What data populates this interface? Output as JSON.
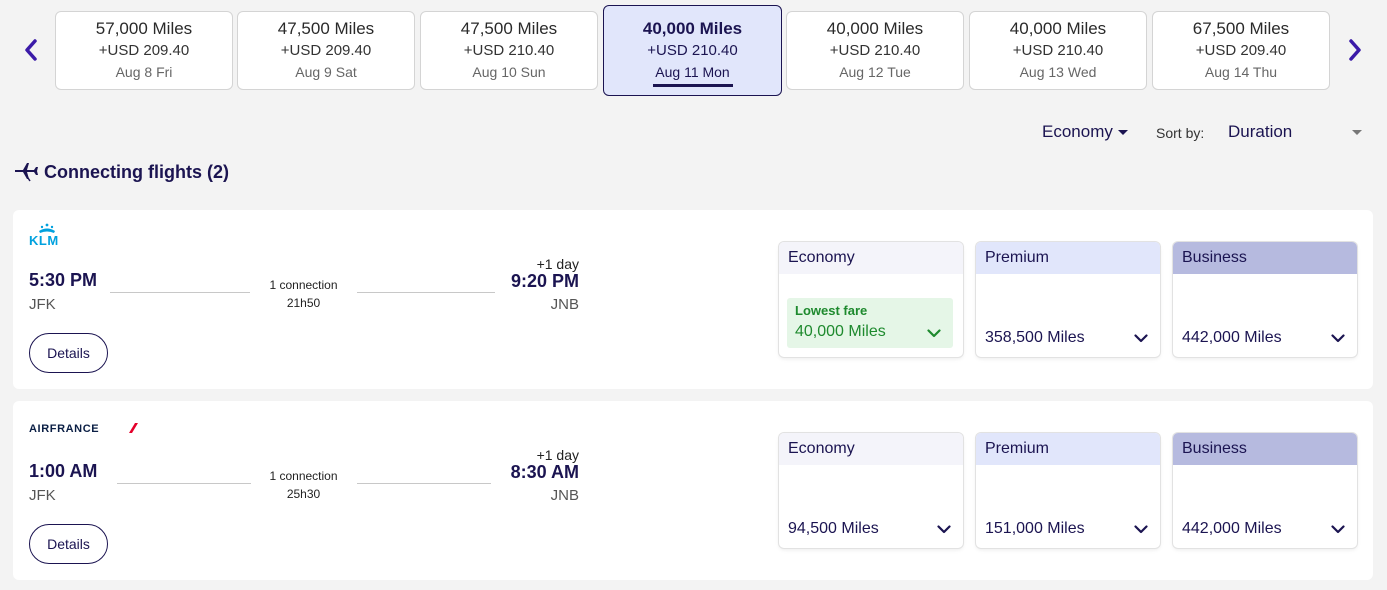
{
  "date_carousel": {
    "dates": [
      {
        "miles": "57,000 Miles",
        "usd": "+USD 209.40",
        "day": "Aug 8 Fri",
        "selected": false
      },
      {
        "miles": "47,500 Miles",
        "usd": "+USD 209.40",
        "day": "Aug 9 Sat",
        "selected": false
      },
      {
        "miles": "47,500 Miles",
        "usd": "+USD 210.40",
        "day": "Aug 10 Sun",
        "selected": false
      },
      {
        "miles": "40,000 Miles",
        "usd": "+USD 210.40",
        "day": "Aug 11 Mon",
        "selected": true
      },
      {
        "miles": "40,000 Miles",
        "usd": "+USD 210.40",
        "day": "Aug 12 Tue",
        "selected": false
      },
      {
        "miles": "40,000 Miles",
        "usd": "+USD 210.40",
        "day": "Aug 13 Wed",
        "selected": false
      },
      {
        "miles": "67,500 Miles",
        "usd": "+USD 209.40",
        "day": "Aug 14 Thu",
        "selected": false
      }
    ],
    "prev_icon": "chevron-left-icon",
    "next_icon": "chevron-right-icon"
  },
  "filters": {
    "cabin": "Economy",
    "sort_label": "Sort by:",
    "sort_value": "Duration"
  },
  "section": {
    "title": "Connecting flights (2)",
    "icon": "connecting-flight-icon"
  },
  "flights": [
    {
      "airline": "KLM",
      "departure_time": "5:30 PM",
      "departure_code": "JFK",
      "connection": "1 connection",
      "duration": "21h50",
      "plus_day": "+1 day",
      "arrival_time": "9:20 PM",
      "arrival_code": "JNB",
      "details_label": "Details",
      "fares": {
        "economy": {
          "label": "Economy",
          "lowest_label": "Lowest fare",
          "price": "40,000 Miles"
        },
        "premium": {
          "label": "Premium",
          "price": "358,500 Miles"
        },
        "business": {
          "label": "Business",
          "price": "442,000 Miles"
        }
      }
    },
    {
      "airline": "AIRFRANCE",
      "departure_time": "1:00 AM",
      "departure_code": "JFK",
      "connection": "1 connection",
      "duration": "25h30",
      "plus_day": "+1 day",
      "arrival_time": "8:30 AM",
      "arrival_code": "JNB",
      "details_label": "Details",
      "fares": {
        "economy": {
          "label": "Economy",
          "price": "94,500 Miles"
        },
        "premium": {
          "label": "Premium",
          "price": "151,000 Miles"
        },
        "business": {
          "label": "Business",
          "price": "442,000 Miles"
        }
      }
    }
  ],
  "colors": {
    "brand": "#1b1451",
    "selected_bg": "#e1e6fb",
    "lowest_green": "#1e8a2e",
    "klm_blue": "#00a1de",
    "airfrance_red": "#e4002b"
  }
}
